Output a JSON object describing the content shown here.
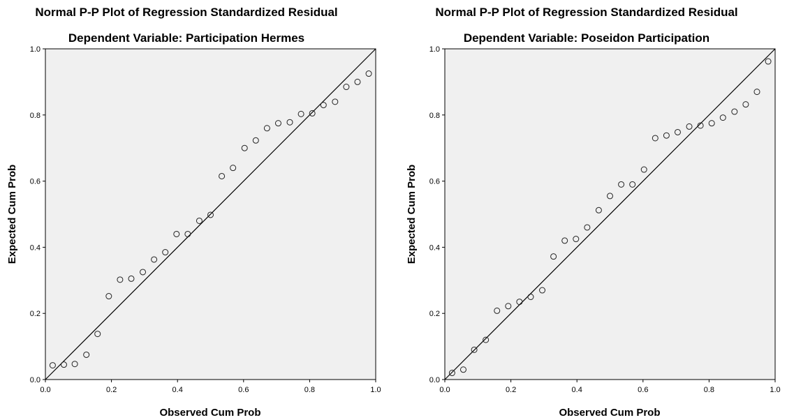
{
  "colors": {
    "plot_background": "#f0f0f0",
    "marker": "#222222",
    "line": "#000000"
  },
  "chart_data": [
    {
      "type": "scatter",
      "title": "Normal P-P Plot of Regression Standardized Residual",
      "subtitle": "Dependent Variable: Participation Hermes",
      "xlabel": "Observed Cum Prob",
      "ylabel": "Expected Cum Prob",
      "xlim": [
        0,
        1
      ],
      "ylim": [
        0,
        1
      ],
      "xticks": [
        "0.0",
        "0.2",
        "0.4",
        "0.6",
        "0.8",
        "1.0"
      ],
      "yticks": [
        "0.0",
        "0.2",
        "0.4",
        "0.6",
        "0.8",
        "1.0"
      ],
      "reference_line": [
        [
          0,
          0
        ],
        [
          1,
          1
        ]
      ],
      "grid": false,
      "points": [
        [
          0.022,
          0.043
        ],
        [
          0.056,
          0.045
        ],
        [
          0.089,
          0.047
        ],
        [
          0.124,
          0.075
        ],
        [
          0.158,
          0.138
        ],
        [
          0.192,
          0.252
        ],
        [
          0.226,
          0.302
        ],
        [
          0.26,
          0.305
        ],
        [
          0.295,
          0.325
        ],
        [
          0.329,
          0.363
        ],
        [
          0.363,
          0.385
        ],
        [
          0.397,
          0.44
        ],
        [
          0.431,
          0.44
        ],
        [
          0.466,
          0.48
        ],
        [
          0.5,
          0.498
        ],
        [
          0.534,
          0.615
        ],
        [
          0.568,
          0.64
        ],
        [
          0.603,
          0.7
        ],
        [
          0.637,
          0.723
        ],
        [
          0.671,
          0.76
        ],
        [
          0.705,
          0.775
        ],
        [
          0.74,
          0.778
        ],
        [
          0.774,
          0.803
        ],
        [
          0.808,
          0.805
        ],
        [
          0.842,
          0.83
        ],
        [
          0.877,
          0.84
        ],
        [
          0.911,
          0.885
        ],
        [
          0.945,
          0.9
        ],
        [
          0.979,
          0.925
        ]
      ]
    },
    {
      "type": "scatter",
      "title": "Normal P-P Plot of Regression Standardized Residual",
      "subtitle": "Dependent Variable: Poseidon Participation",
      "xlabel": "Observed Cum Prob",
      "ylabel": "Expected Cum Prob",
      "xlim": [
        0,
        1
      ],
      "ylim": [
        0,
        1
      ],
      "xticks": [
        "0.0",
        "0.2",
        "0.4",
        "0.6",
        "0.8",
        "1.0"
      ],
      "yticks": [
        "0.0",
        "0.2",
        "0.4",
        "0.6",
        "0.8",
        "1.0"
      ],
      "reference_line": [
        [
          0,
          0
        ],
        [
          1,
          1
        ]
      ],
      "grid": false,
      "points": [
        [
          0.022,
          0.02
        ],
        [
          0.056,
          0.03
        ],
        [
          0.089,
          0.09
        ],
        [
          0.124,
          0.12
        ],
        [
          0.158,
          0.208
        ],
        [
          0.192,
          0.222
        ],
        [
          0.226,
          0.235
        ],
        [
          0.26,
          0.25
        ],
        [
          0.295,
          0.27
        ],
        [
          0.329,
          0.372
        ],
        [
          0.363,
          0.42
        ],
        [
          0.397,
          0.425
        ],
        [
          0.431,
          0.46
        ],
        [
          0.466,
          0.512
        ],
        [
          0.5,
          0.555
        ],
        [
          0.534,
          0.59
        ],
        [
          0.568,
          0.59
        ],
        [
          0.603,
          0.635
        ],
        [
          0.637,
          0.73
        ],
        [
          0.671,
          0.738
        ],
        [
          0.705,
          0.748
        ],
        [
          0.74,
          0.765
        ],
        [
          0.774,
          0.768
        ],
        [
          0.808,
          0.775
        ],
        [
          0.842,
          0.792
        ],
        [
          0.877,
          0.81
        ],
        [
          0.911,
          0.832
        ],
        [
          0.945,
          0.87
        ],
        [
          0.979,
          0.962
        ]
      ]
    }
  ]
}
